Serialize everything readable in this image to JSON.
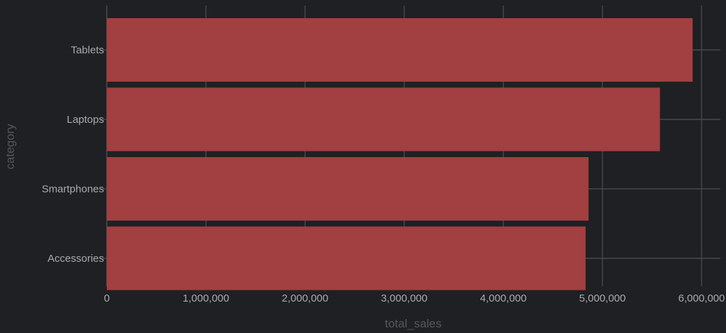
{
  "chart_data": {
    "type": "bar",
    "orientation": "horizontal",
    "categories": [
      "Tablets",
      "Laptops",
      "Smartphones",
      "Accessories"
    ],
    "values": [
      5910000,
      5580000,
      4860000,
      4830000
    ],
    "xlabel": "total_sales",
    "ylabel": "category",
    "xlim": [
      0,
      6000000
    ],
    "x_ticks": [
      "0",
      "1,000,000",
      "2,000,000",
      "3,000,000",
      "4,000,000",
      "5,000,000",
      "6,000,000"
    ],
    "grid": true,
    "legend": "none",
    "colors": {
      "bar": "#a23f40",
      "background": "#1f2023",
      "grid": "#4d4f53",
      "tick_text": "#a9aaad",
      "axis_title": "#55575b"
    }
  }
}
